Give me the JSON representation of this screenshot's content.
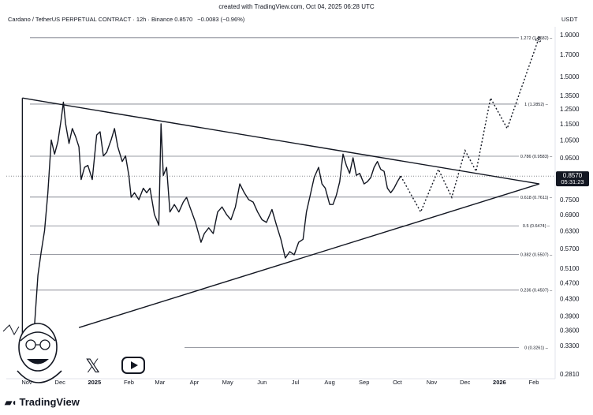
{
  "header": {
    "created": "created with TradingView.com, Oct 04, 2025 06:28 UTC",
    "symbol": "Cardano / TetherUS PERPETUAL CONTRACT · 12h · Binance",
    "price": "0.8570",
    "change": "−0.0083 (−0.96%)",
    "currency": "USDT"
  },
  "brand": {
    "name": "TradingView"
  },
  "current_price": {
    "value": "0.8570",
    "countdown": "05:31:23",
    "bg": "#131722",
    "fg": "#ffffff"
  },
  "chart_data": {
    "type": "line",
    "y_scale": "log",
    "ylim": [
      0.28,
      2.0
    ],
    "y_ticks": [
      "1.9000",
      "1.7000",
      "1.5000",
      "1.3500",
      "1.2500",
      "1.1500",
      "1.0500",
      "0.9500",
      "0.7500",
      "0.6900",
      "0.6300",
      "0.5700",
      "0.5100",
      "0.4700",
      "0.4300",
      "0.3900",
      "0.3600",
      "0.3300",
      "0.2810"
    ],
    "x_ticks": [
      "Nov",
      "Dec",
      "2025",
      "Feb",
      "Mar",
      "Apr",
      "May",
      "Jun",
      "Jul",
      "Aug",
      "Sep",
      "Oct",
      "Nov",
      "Dec",
      "2026",
      "Feb"
    ],
    "x_ticks_bold": [
      "2025",
      "2026"
    ],
    "fib_levels": [
      {
        "label": "1.272 (1.8682)",
        "value": 1.8682
      },
      {
        "label": "1 (1.2852)",
        "value": 1.2852
      },
      {
        "label": "0.786 (0.9583)",
        "value": 0.9583
      },
      {
        "label": "0.618 (0.7611)",
        "value": 0.7611
      },
      {
        "label": "0.5 (0.6474)",
        "value": 0.6474
      },
      {
        "label": "0.382 (0.5507)",
        "value": 0.5507
      },
      {
        "label": "0.236 (0.4507)",
        "value": 0.4507
      },
      {
        "label": "0 (0.3261)",
        "value": 0.3261
      }
    ],
    "price_series": [
      [
        "2024-10-28",
        0.34
      ],
      [
        "2024-11-01",
        0.33
      ],
      [
        "2024-11-05",
        0.34
      ],
      [
        "2024-11-08",
        0.37
      ],
      [
        "2024-11-11",
        0.49
      ],
      [
        "2024-11-14",
        0.56
      ],
      [
        "2024-11-17",
        0.63
      ],
      [
        "2024-11-20",
        0.78
      ],
      [
        "2024-11-23",
        1.05
      ],
      [
        "2024-11-26",
        0.97
      ],
      [
        "2024-11-29",
        1.04
      ],
      [
        "2024-12-02",
        1.18
      ],
      [
        "2024-12-04",
        1.3
      ],
      [
        "2024-12-06",
        1.15
      ],
      [
        "2024-12-09",
        1.03
      ],
      [
        "2024-12-12",
        1.12
      ],
      [
        "2024-12-15",
        1.07
      ],
      [
        "2024-12-18",
        1.01
      ],
      [
        "2024-12-20",
        0.84
      ],
      [
        "2024-12-23",
        0.9
      ],
      [
        "2024-12-26",
        0.91
      ],
      [
        "2024-12-30",
        0.84
      ],
      [
        "2025-01-03",
        1.08
      ],
      [
        "2025-01-06",
        1.1
      ],
      [
        "2025-01-09",
        0.96
      ],
      [
        "2025-01-12",
        0.98
      ],
      [
        "2025-01-16",
        1.05
      ],
      [
        "2025-01-19",
        1.12
      ],
      [
        "2025-01-22",
        1.01
      ],
      [
        "2025-01-26",
        0.93
      ],
      [
        "2025-01-29",
        0.96
      ],
      [
        "2025-02-01",
        0.86
      ],
      [
        "2025-02-03",
        0.76
      ],
      [
        "2025-02-06",
        0.78
      ],
      [
        "2025-02-10",
        0.75
      ],
      [
        "2025-02-14",
        0.8
      ],
      [
        "2025-02-17",
        0.78
      ],
      [
        "2025-02-20",
        0.8
      ],
      [
        "2025-02-24",
        0.69
      ],
      [
        "2025-02-28",
        0.65
      ],
      [
        "2025-03-02",
        1.15
      ],
      [
        "2025-03-04",
        0.86
      ],
      [
        "2025-03-07",
        0.9
      ],
      [
        "2025-03-10",
        0.7
      ],
      [
        "2025-03-14",
        0.73
      ],
      [
        "2025-03-18",
        0.7
      ],
      [
        "2025-03-22",
        0.74
      ],
      [
        "2025-03-25",
        0.76
      ],
      [
        "2025-03-28",
        0.72
      ],
      [
        "2025-04-02",
        0.66
      ],
      [
        "2025-04-07",
        0.59
      ],
      [
        "2025-04-10",
        0.62
      ],
      [
        "2025-04-14",
        0.64
      ],
      [
        "2025-04-18",
        0.62
      ],
      [
        "2025-04-22",
        0.7
      ],
      [
        "2025-04-26",
        0.72
      ],
      [
        "2025-04-30",
        0.69
      ],
      [
        "2025-05-04",
        0.67
      ],
      [
        "2025-05-08",
        0.72
      ],
      [
        "2025-05-12",
        0.82
      ],
      [
        "2025-05-16",
        0.78
      ],
      [
        "2025-05-20",
        0.75
      ],
      [
        "2025-05-24",
        0.74
      ],
      [
        "2025-05-28",
        0.7
      ],
      [
        "2025-06-01",
        0.67
      ],
      [
        "2025-06-05",
        0.66
      ],
      [
        "2025-06-10",
        0.71
      ],
      [
        "2025-06-14",
        0.65
      ],
      [
        "2025-06-18",
        0.6
      ],
      [
        "2025-06-22",
        0.54
      ],
      [
        "2025-06-26",
        0.56
      ],
      [
        "2025-06-30",
        0.55
      ],
      [
        "2025-07-04",
        0.59
      ],
      [
        "2025-07-08",
        0.6
      ],
      [
        "2025-07-11",
        0.7
      ],
      [
        "2025-07-14",
        0.76
      ],
      [
        "2025-07-18",
        0.85
      ],
      [
        "2025-07-22",
        0.9
      ],
      [
        "2025-07-25",
        0.82
      ],
      [
        "2025-07-28",
        0.8
      ],
      [
        "2025-08-01",
        0.73
      ],
      [
        "2025-08-04",
        0.73
      ],
      [
        "2025-08-07",
        0.77
      ],
      [
        "2025-08-10",
        0.83
      ],
      [
        "2025-08-13",
        0.97
      ],
      [
        "2025-08-16",
        0.91
      ],
      [
        "2025-08-19",
        0.87
      ],
      [
        "2025-08-22",
        0.95
      ],
      [
        "2025-08-25",
        0.86
      ],
      [
        "2025-08-28",
        0.87
      ],
      [
        "2025-09-01",
        0.82
      ],
      [
        "2025-09-04",
        0.83
      ],
      [
        "2025-09-07",
        0.85
      ],
      [
        "2025-09-10",
        0.9
      ],
      [
        "2025-09-13",
        0.93
      ],
      [
        "2025-09-16",
        0.89
      ],
      [
        "2025-09-19",
        0.88
      ],
      [
        "2025-09-22",
        0.8
      ],
      [
        "2025-09-25",
        0.78
      ],
      [
        "2025-09-28",
        0.8
      ],
      [
        "2025-10-01",
        0.83
      ],
      [
        "2025-10-04",
        0.857
      ]
    ],
    "projection_series": [
      [
        "2025-10-04",
        0.857
      ],
      [
        "2025-10-22",
        0.7
      ],
      [
        "2025-11-07",
        0.89
      ],
      [
        "2025-11-19",
        0.76
      ],
      [
        "2025-12-01",
        0.99
      ],
      [
        "2025-12-11",
        0.88
      ],
      [
        "2025-12-24",
        1.33
      ],
      [
        "2026-01-08",
        1.12
      ],
      [
        "2026-02-06",
        1.88
      ]
    ],
    "triangle": {
      "upper": [
        [
          "2024-10-28",
          1.33
        ],
        [
          "2026-02-06",
          0.82
        ]
      ],
      "lower": [
        [
          "2024-12-18",
          0.365
        ],
        [
          "2026-02-06",
          0.82
        ]
      ],
      "left_edge": [
        [
          "2024-10-28",
          1.33
        ],
        [
          "2024-10-28",
          0.34
        ]
      ]
    }
  }
}
